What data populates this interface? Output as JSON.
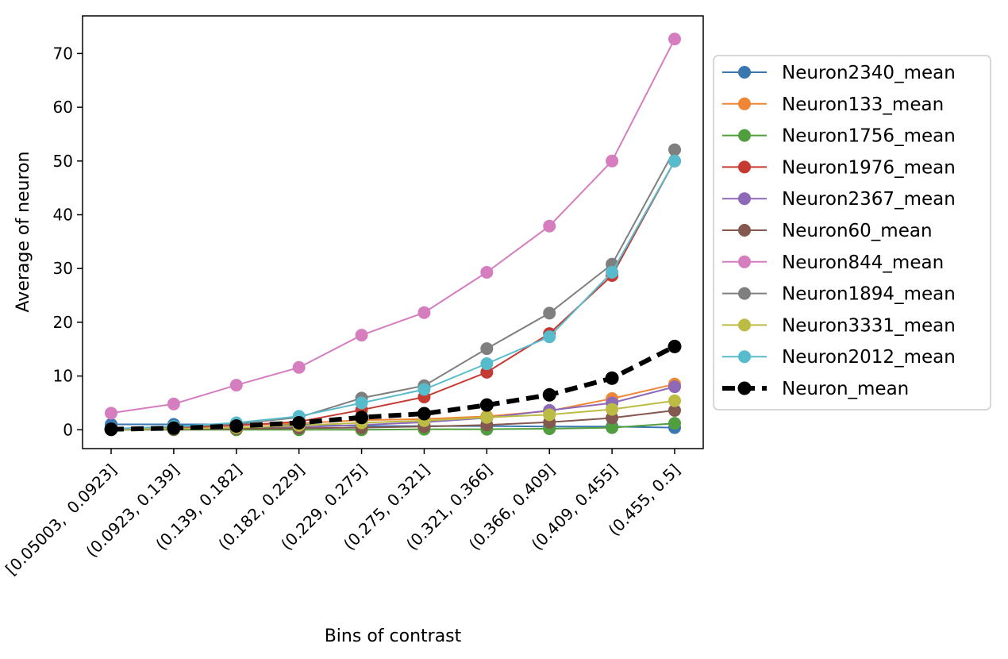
{
  "chart_data": {
    "type": "line",
    "title": "",
    "xlabel": "Bins of contrast",
    "ylabel": "Average of neuron",
    "categories": [
      "[0.05003,  0.0923]",
      "(0.0923, 0.139]",
      "(0.139, 0.182]",
      "(0.182, 0.229]",
      "(0.229, 0.275]",
      "(0.275, 0.321]",
      "(0.321, 0.366]",
      "(0.366, 0.409]",
      "(0.409, 0.455]",
      "(0.455, 0.5]"
    ],
    "ylim": [
      -3.5,
      77
    ],
    "yticks": [
      0,
      10,
      20,
      30,
      40,
      50,
      60,
      70
    ],
    "grid": false,
    "legend_position": "right",
    "series": [
      {
        "name": "Neuron2340_mean",
        "color": "#3a76af",
        "values": [
          1.0,
          1.0,
          1.0,
          1.0,
          0.7,
          0.7,
          0.7,
          0.6,
          0.6,
          0.4
        ],
        "dashed": false
      },
      {
        "name": "Neuron133_mean",
        "color": "#ef8636",
        "values": [
          0.2,
          0.4,
          0.8,
          1.2,
          1.8,
          2.0,
          2.5,
          3.5,
          5.8,
          8.5
        ],
        "dashed": false
      },
      {
        "name": "Neuron1756_mean",
        "color": "#519e3e",
        "values": [
          0.0,
          0.0,
          0.0,
          0.0,
          0.0,
          0.1,
          0.1,
          0.2,
          0.4,
          1.2
        ],
        "dashed": false
      },
      {
        "name": "Neuron1976_mean",
        "color": "#c53a32",
        "values": [
          0.1,
          0.3,
          0.8,
          1.5,
          3.7,
          6.1,
          10.7,
          17.9,
          28.7,
          50.0
        ],
        "dashed": false
      },
      {
        "name": "Neuron2367_mean",
        "color": "#8d69b8",
        "values": [
          0.1,
          0.2,
          0.3,
          0.5,
          0.9,
          1.4,
          2.2,
          3.6,
          5.0,
          8.0
        ],
        "dashed": false
      },
      {
        "name": "Neuron60_mean",
        "color": "#84584e",
        "values": [
          0.0,
          0.1,
          0.2,
          0.3,
          0.4,
          0.6,
          0.9,
          1.4,
          2.2,
          3.6
        ],
        "dashed": false
      },
      {
        "name": "Neuron844_mean",
        "color": "#d57dbe",
        "values": [
          3.1,
          4.8,
          8.3,
          11.6,
          17.6,
          21.8,
          29.3,
          37.9,
          50.0,
          72.7
        ],
        "dashed": false
      },
      {
        "name": "Neuron1894_mean",
        "color": "#7f7f7f",
        "values": [
          0.2,
          0.5,
          1.1,
          2.3,
          5.9,
          8.2,
          15.1,
          21.7,
          30.8,
          52.1
        ],
        "dashed": false
      },
      {
        "name": "Neuron3331_mean",
        "color": "#bcbc45",
        "values": [
          0.1,
          0.2,
          0.4,
          0.8,
          1.3,
          1.7,
          2.3,
          2.8,
          3.8,
          5.4
        ],
        "dashed": false
      },
      {
        "name": "Neuron2012_mean",
        "color": "#58bbcc",
        "values": [
          0.2,
          0.6,
          1.3,
          2.5,
          5.0,
          7.5,
          12.3,
          17.3,
          29.3,
          50.0
        ],
        "dashed": false
      },
      {
        "name": "Neuron_mean",
        "color": "#000000",
        "values": [
          0.1,
          0.3,
          0.7,
          1.3,
          2.3,
          3.0,
          4.6,
          6.5,
          9.6,
          15.5
        ],
        "dashed": true
      }
    ]
  }
}
